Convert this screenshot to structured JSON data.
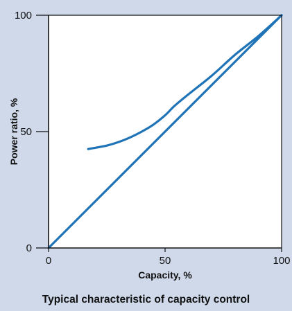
{
  "caption": "Typical characteristic of capacity control",
  "colors": {
    "background": "#cfd9ea",
    "plot_background": "#ffffff",
    "series": "#1f73b7",
    "axis": "#111111"
  },
  "chart_data": {
    "type": "line",
    "xlabel": "Capacity, %",
    "ylabel": "Power ratio, %",
    "xlim": [
      0,
      100
    ],
    "ylim": [
      0,
      100
    ],
    "x_ticks": [
      0,
      50,
      100
    ],
    "y_ticks": [
      0,
      50,
      100
    ],
    "x_tick_labels": [
      "0",
      "50",
      "100"
    ],
    "y_tick_labels": [
      "0",
      "50",
      "100"
    ],
    "grid": false,
    "series": [
      {
        "x": [
          0,
          100
        ],
        "y": [
          0,
          100
        ]
      },
      {
        "x": [
          17,
          25,
          30,
          35,
          40,
          45,
          50,
          54,
          60,
          70,
          80,
          90,
          100
        ],
        "y": [
          42.5,
          44,
          45.5,
          47.5,
          50,
          53,
          57,
          61,
          66,
          74,
          83,
          91,
          100
        ]
      }
    ]
  }
}
